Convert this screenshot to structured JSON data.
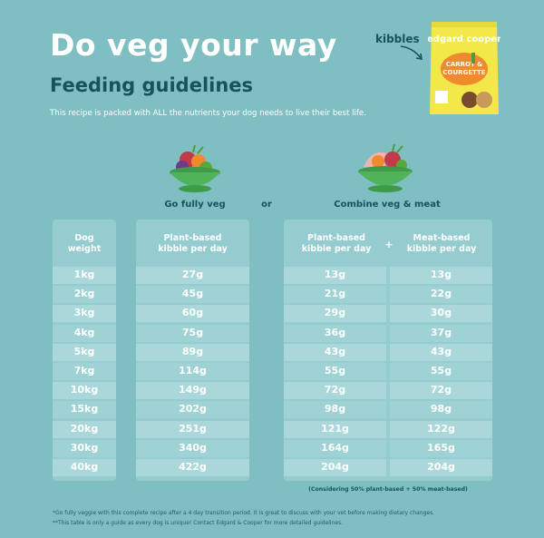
{
  "header": {
    "title": "Do veg your way",
    "subtitle": "Feeding guidelines",
    "intro": "This recipe is packed with ALL the nutrients your dog needs to live their best life."
  },
  "product": {
    "kibbles_label": "kibbles",
    "brand": "edgard cooper",
    "flavor_line1": "CARROT &",
    "flavor_line2": "COURGETTE"
  },
  "options": {
    "veg_label": "Go fully veg",
    "or_label": "or",
    "mix_label": "Combine veg & meat"
  },
  "table": {
    "headers": {
      "dog_weight": [
        "Dog",
        "weight"
      ],
      "plant_full": [
        "Plant-based",
        "kibble per day"
      ],
      "plant_mix": [
        "Plant-based",
        "kibble per day"
      ],
      "plus": "+",
      "meat_mix": [
        "Meat-based",
        "kibble per day"
      ]
    },
    "rows": [
      {
        "weight": "1kg",
        "veg": "27g",
        "mix_plant": "13g",
        "mix_meat": "13g"
      },
      {
        "weight": "2kg",
        "veg": "45g",
        "mix_plant": "21g",
        "mix_meat": "22g"
      },
      {
        "weight": "3kg",
        "veg": "60g",
        "mix_plant": "29g",
        "mix_meat": "30g"
      },
      {
        "weight": "4kg",
        "veg": "75g",
        "mix_plant": "36g",
        "mix_meat": "37g"
      },
      {
        "weight": "5kg",
        "veg": "89g",
        "mix_plant": "43g",
        "mix_meat": "43g"
      },
      {
        "weight": "7kg",
        "veg": "114g",
        "mix_plant": "55g",
        "mix_meat": "55g"
      },
      {
        "weight": "10kg",
        "veg": "149g",
        "mix_plant": "72g",
        "mix_meat": "72g"
      },
      {
        "weight": "15kg",
        "veg": "202g",
        "mix_plant": "98g",
        "mix_meat": "98g"
      },
      {
        "weight": "20kg",
        "veg": "251g",
        "mix_plant": "121g",
        "mix_meat": "122g"
      },
      {
        "weight": "30kg",
        "veg": "340g",
        "mix_plant": "164g",
        "mix_meat": "165g"
      },
      {
        "weight": "40kg",
        "veg": "422g",
        "mix_plant": "204g",
        "mix_meat": "204g"
      }
    ],
    "consider_note": "(Considering 50% plant-based + 50% meat-based)"
  },
  "footnotes": {
    "note1": "*Go fully veggie with this complete recipe after a 4 day transition period. It is great to discuss with your vet before making dietary changes.",
    "note2": "**This table is only a guide as every dog is unique! Contact Edgard & Cooper for more detailed guidelines."
  },
  "colors": {
    "background": "#7fbfc2",
    "dark_teal": "#16545a",
    "panel": "#94cccf",
    "row": "#aad8da",
    "pack_yellow": "#f2e84a",
    "pack_orange": "#ef8a2f"
  }
}
